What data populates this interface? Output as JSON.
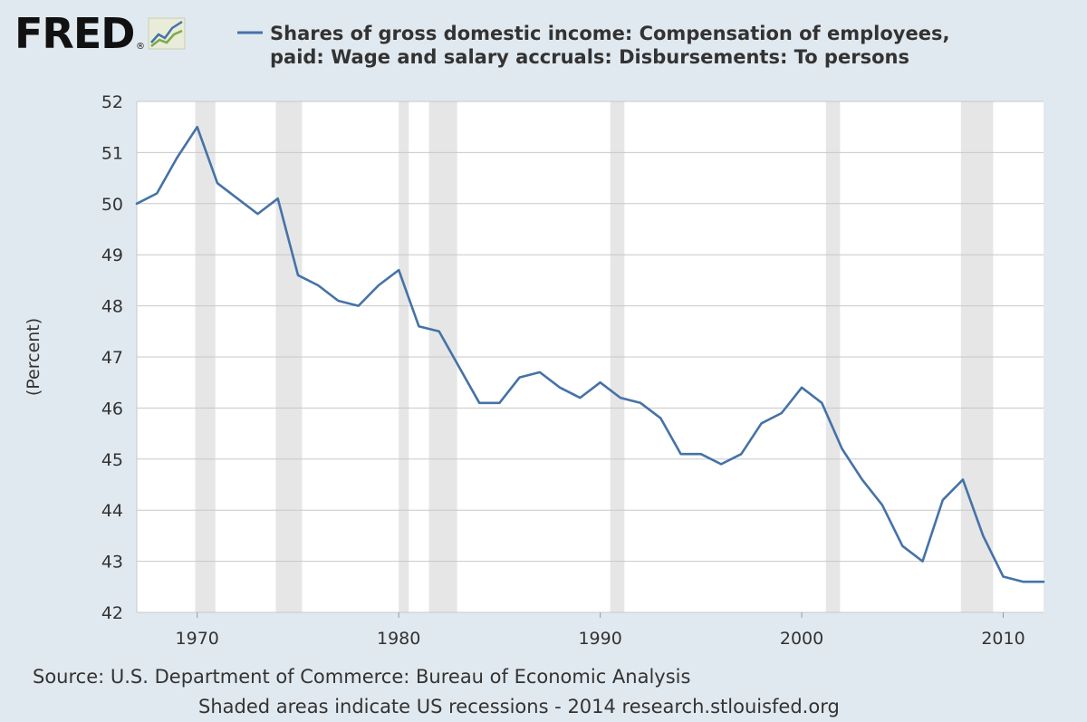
{
  "header": {
    "logo_text": "FRED",
    "logo_registered": "®",
    "logo_icon": "line-chart-icon",
    "legend_title_line1": "Shares of gross domestic income: Compensation of employees,",
    "legend_title_line2": "paid: Wage and salary accruals: Disbursements: To persons"
  },
  "footer": {
    "source": "Source: U.S. Department of Commerce: Bureau of Economic Analysis",
    "note": "Shaded areas indicate US recessions - 2014 research.stlouisfed.org"
  },
  "colors": {
    "background": "#e1e9f0",
    "plot_background": "#ffffff",
    "line": "#4572a7",
    "recession": "#e6e6e6",
    "grid": "#c8c8c8"
  },
  "chart_data": {
    "type": "line",
    "title": "Shares of gross domestic income: Compensation of employees, paid: Wage and salary accruals: Disbursements: To persons",
    "xlabel": "",
    "ylabel": "(Percent)",
    "xlim": [
      1967,
      2012
    ],
    "ylim": [
      42,
      52
    ],
    "x_ticks": [
      1970,
      1980,
      1990,
      2000,
      2010
    ],
    "y_ticks": [
      42,
      43,
      44,
      45,
      46,
      47,
      48,
      49,
      50,
      51,
      52
    ],
    "grid": "horizontal",
    "legend": "top",
    "recessions": [
      [
        1969.9,
        1970.9
      ],
      [
        1973.9,
        1975.2
      ],
      [
        1980.0,
        1980.5
      ],
      [
        1981.5,
        1982.9
      ],
      [
        1990.5,
        1991.2
      ],
      [
        2001.2,
        2001.9
      ],
      [
        2007.9,
        2009.5
      ]
    ],
    "series": [
      {
        "name": "Shares of gross domestic income: Compensation of employees, paid: Wage and salary accruals: Disbursements: To persons",
        "x": [
          1967,
          1968,
          1969,
          1970,
          1971,
          1972,
          1973,
          1974,
          1975,
          1976,
          1977,
          1978,
          1979,
          1980,
          1981,
          1982,
          1983,
          1984,
          1985,
          1986,
          1987,
          1988,
          1989,
          1990,
          1991,
          1992,
          1993,
          1994,
          1995,
          1996,
          1997,
          1998,
          1999,
          2000,
          2001,
          2002,
          2003,
          2004,
          2005,
          2006,
          2007,
          2008,
          2009,
          2010,
          2011,
          2012
        ],
        "values": [
          50.0,
          50.2,
          50.9,
          51.5,
          50.4,
          50.1,
          49.8,
          50.1,
          48.6,
          48.4,
          48.1,
          48.0,
          48.4,
          48.7,
          47.6,
          47.5,
          46.8,
          46.1,
          46.1,
          46.6,
          46.7,
          46.4,
          46.2,
          46.5,
          46.2,
          46.1,
          45.8,
          45.1,
          45.1,
          44.9,
          45.1,
          45.7,
          45.9,
          46.4,
          46.1,
          45.2,
          44.6,
          44.1,
          43.3,
          43.0,
          44.2,
          44.6,
          43.5,
          42.7,
          42.6,
          42.6
        ]
      }
    ]
  }
}
